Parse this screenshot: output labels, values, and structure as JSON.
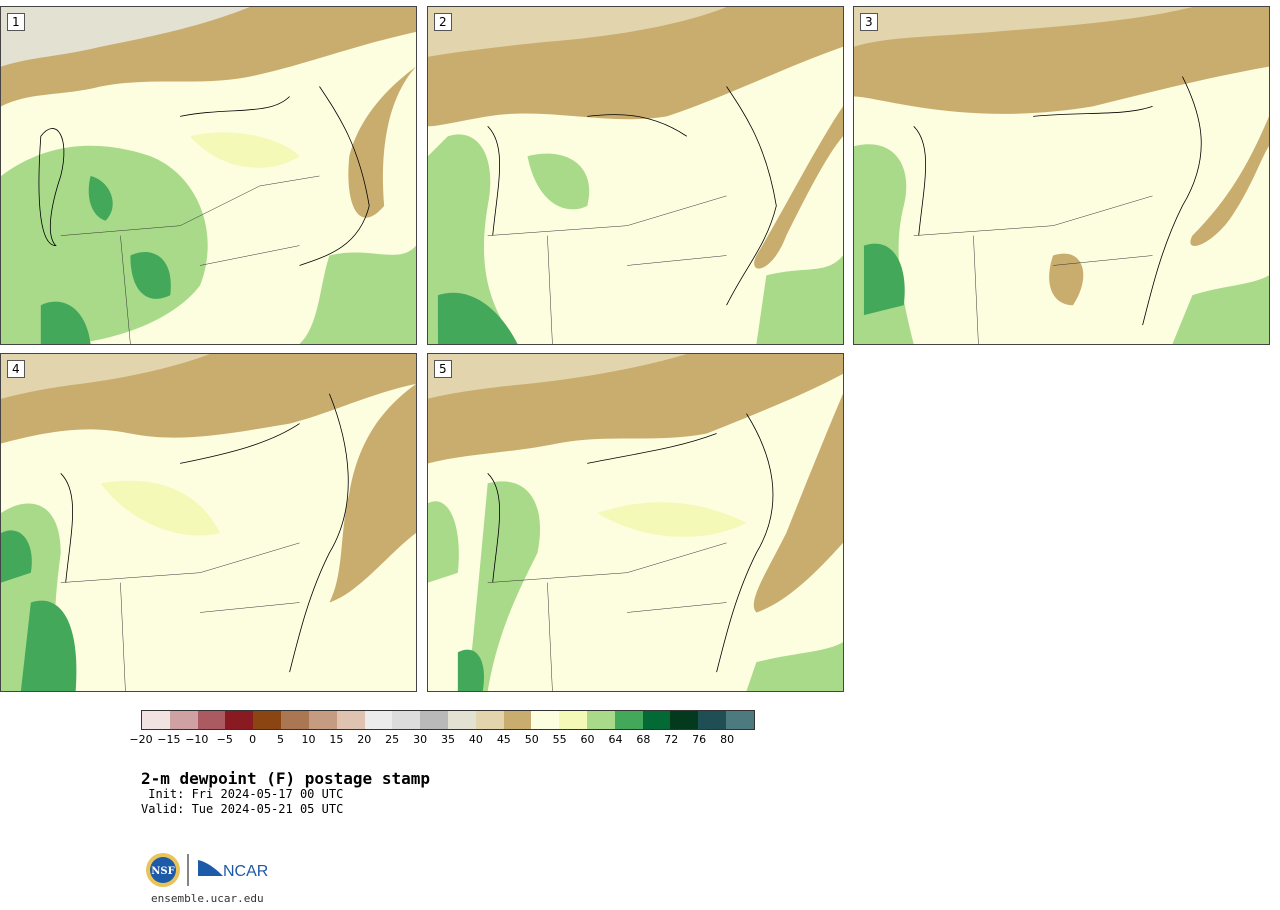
{
  "panels": [
    {
      "id": "1",
      "label": "1"
    },
    {
      "id": "2",
      "label": "2"
    },
    {
      "id": "3",
      "label": "3"
    },
    {
      "id": "4",
      "label": "4"
    },
    {
      "id": "5",
      "label": "5"
    }
  ],
  "colorbar": {
    "colors": [
      "#f1e3e2",
      "#d0a1a3",
      "#aa5a60",
      "#8a1a22",
      "#8a4512",
      "#aa7752",
      "#c59c82",
      "#dfc2b0",
      "#ececec",
      "#dcdcdc",
      "#b9b9b9",
      "#e3e1d2",
      "#e2d4ad",
      "#c9ad6e",
      "#fdfde0",
      "#f4f9b8",
      "#a8da8a",
      "#44a85a",
      "#046a35",
      "#033a1e",
      "#1f4f54",
      "#4d7a7e"
    ],
    "ticks": [
      "−20",
      "−15",
      "−10",
      "−5",
      "0",
      "5",
      "10",
      "15",
      "20",
      "25",
      "30",
      "35",
      "40",
      "45",
      "50",
      "55",
      "60",
      "64",
      "68",
      "72",
      "76",
      "80"
    ]
  },
  "title": "2-m dewpoint (F) postage stamp",
  "init": " Init: Fri 2024-05-17 00 UTC",
  "valid": "Valid: Tue 2024-05-21 05 UTC",
  "logos": {
    "nsf": "NSF",
    "ncar": "NCAR"
  },
  "site": "ensemble.ucar.edu"
}
